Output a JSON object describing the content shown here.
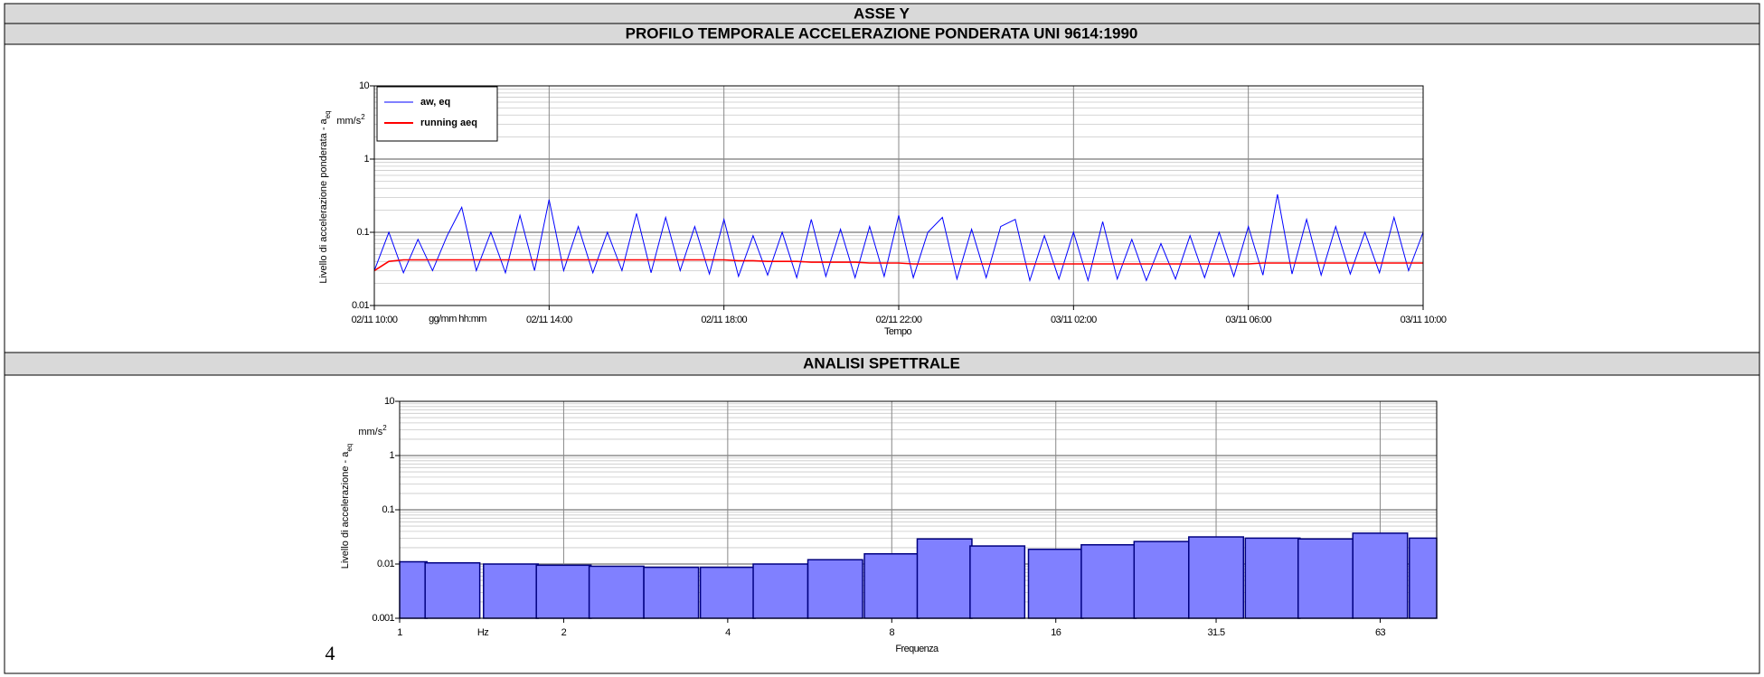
{
  "header": {
    "title": "ASSE Y"
  },
  "sections": [
    "PROFILO TEMPORALE ACCELERAZIONE PONDERATA UNI 9614:1990",
    "ANALISI SPETTRALE"
  ],
  "page_number": "4",
  "chart_data": [
    {
      "type": "line",
      "xlabel": "Tempo",
      "x_unit": "gg/mm hh:mm",
      "ylabel": "Livello di accelerazione ponderata - a",
      "ylabel_sub": "eq",
      "y_unit": "mm/s",
      "y_unit_sup": "2",
      "x": [
        "02/11 10:00",
        "02/11 10:20",
        "02/11 10:40",
        "02/11 11:00",
        "02/11 11:20",
        "02/11 11:40",
        "02/11 12:00",
        "02/11 12:20",
        "02/11 12:40",
        "02/11 13:00",
        "02/11 13:20",
        "02/11 13:40",
        "02/11 14:00",
        "02/11 14:20",
        "02/11 14:40",
        "02/11 15:00",
        "02/11 15:20",
        "02/11 15:40",
        "02/11 16:00",
        "02/11 16:20",
        "02/11 16:40",
        "02/11 17:00",
        "02/11 17:20",
        "02/11 17:40",
        "02/11 18:00",
        "02/11 18:20",
        "02/11 18:40",
        "02/11 19:00",
        "02/11 19:20",
        "02/11 19:40",
        "02/11 20:00",
        "02/11 20:20",
        "02/11 20:40",
        "02/11 21:00",
        "02/11 21:20",
        "02/11 21:40",
        "02/11 22:00",
        "02/11 22:20",
        "02/11 22:40",
        "02/11 23:00",
        "02/11 23:20",
        "02/11 23:40",
        "03/11 00:00",
        "03/11 00:20",
        "03/11 00:40",
        "03/11 01:00",
        "03/11 01:20",
        "03/11 01:40",
        "03/11 02:00",
        "03/11 02:20",
        "03/11 02:40",
        "03/11 03:00",
        "03/11 03:20",
        "03/11 03:40",
        "03/11 04:00",
        "03/11 04:20",
        "03/11 04:40",
        "03/11 05:00",
        "03/11 05:20",
        "03/11 05:40",
        "03/11 06:00",
        "03/11 06:20",
        "03/11 06:40",
        "03/11 07:00",
        "03/11 07:20",
        "03/11 07:40",
        "03/11 08:00",
        "03/11 08:20",
        "03/11 08:40",
        "03/11 09:00",
        "03/11 09:20",
        "03/11 09:40",
        "03/11 10:00"
      ],
      "xlim": [
        "02/11 10:00",
        "03/11 10:00"
      ],
      "xticks": [
        "02/11 10:00",
        "02/11 14:00",
        "02/11 18:00",
        "02/11 22:00",
        "03/11 02:00",
        "03/11 06:00",
        "03/11 10:00"
      ],
      "yscale": "log",
      "ylim": [
        0.01,
        10
      ],
      "yticks": [
        0.01,
        0.1,
        1,
        10
      ],
      "grid": true,
      "legend": "upper left",
      "series": [
        {
          "name": "aw, eq",
          "color": "#0000ff",
          "values": [
            0.03,
            0.1,
            0.028,
            0.08,
            0.03,
            0.09,
            0.22,
            0.03,
            0.1,
            0.028,
            0.17,
            0.03,
            0.28,
            0.03,
            0.12,
            0.028,
            0.1,
            0.03,
            0.18,
            0.028,
            0.16,
            0.03,
            0.12,
            0.027,
            0.15,
            0.025,
            0.09,
            0.026,
            0.1,
            0.024,
            0.15,
            0.025,
            0.11,
            0.024,
            0.12,
            0.025,
            0.17,
            0.024,
            0.1,
            0.16,
            0.023,
            0.11,
            0.024,
            0.12,
            0.15,
            0.022,
            0.09,
            0.023,
            0.1,
            0.022,
            0.14,
            0.023,
            0.08,
            0.022,
            0.07,
            0.023,
            0.09,
            0.024,
            0.1,
            0.025,
            0.12,
            0.026,
            0.33,
            0.027,
            0.15,
            0.026,
            0.12,
            0.027,
            0.1,
            0.028,
            0.16,
            0.03,
            0.1
          ]
        },
        {
          "name": "running aeq",
          "color": "#ff0000",
          "values": [
            0.03,
            0.04,
            0.042,
            0.042,
            0.042,
            0.042,
            0.042,
            0.042,
            0.042,
            0.042,
            0.042,
            0.042,
            0.042,
            0.042,
            0.042,
            0.042,
            0.042,
            0.042,
            0.042,
            0.042,
            0.042,
            0.042,
            0.042,
            0.042,
            0.042,
            0.041,
            0.041,
            0.04,
            0.04,
            0.04,
            0.039,
            0.039,
            0.039,
            0.039,
            0.038,
            0.038,
            0.038,
            0.037,
            0.037,
            0.037,
            0.037,
            0.037,
            0.037,
            0.037,
            0.037,
            0.037,
            0.037,
            0.037,
            0.037,
            0.037,
            0.037,
            0.037,
            0.037,
            0.037,
            0.037,
            0.037,
            0.037,
            0.037,
            0.037,
            0.037,
            0.037,
            0.038,
            0.038,
            0.038,
            0.038,
            0.038,
            0.038,
            0.038,
            0.038,
            0.038,
            0.038,
            0.038,
            0.038
          ]
        }
      ]
    },
    {
      "type": "bar",
      "xlabel": "Frequenza",
      "x_unit": "Hz",
      "ylabel": "Livello di accelerazione - a",
      "ylabel_sub": "eq",
      "y_unit": "mm/s",
      "y_unit_sup": "2",
      "x": [
        1,
        1.25,
        1.6,
        2,
        2.5,
        3.15,
        4,
        5,
        6.3,
        8,
        10,
        12.5,
        16,
        20,
        25,
        31.5,
        40,
        50,
        63,
        80
      ],
      "values": [
        0.011,
        0.0105,
        0.01,
        0.0095,
        0.0091,
        0.0087,
        0.0087,
        0.01,
        0.012,
        0.0154,
        0.029,
        0.0215,
        0.0187,
        0.0226,
        0.026,
        0.0316,
        0.03,
        0.029,
        0.037,
        0.03
      ],
      "color": "#8080ff",
      "edgecolor": "#000080",
      "xscale": "log",
      "xlim": [
        1,
        80
      ],
      "xticks": [
        1,
        2,
        4,
        8,
        16,
        31.5,
        63
      ],
      "yscale": "log",
      "ylim": [
        0.001,
        10
      ],
      "yticks": [
        0.001,
        0.01,
        0.1,
        1,
        10
      ],
      "grid": true
    }
  ]
}
